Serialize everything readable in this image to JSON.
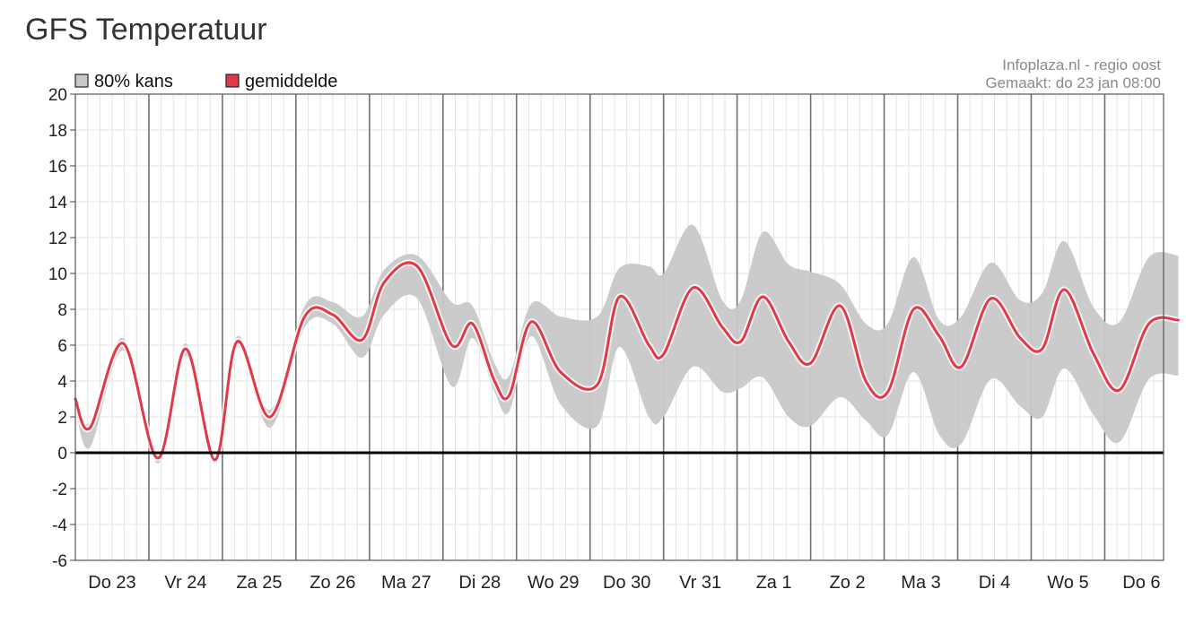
{
  "page": {
    "title": "GFS Temperatuur"
  },
  "chart_data": {
    "type": "line",
    "title": "GFS Temperatuur",
    "source": "Infoplaza.nl - regio oost",
    "created": "Gemaakt: do 23 jan 08:00",
    "ylim": [
      -6,
      20
    ],
    "yticks": [
      -6,
      -4,
      -2,
      0,
      2,
      4,
      6,
      8,
      10,
      12,
      14,
      16,
      18,
      20
    ],
    "grid": true,
    "legend_position": "top-left",
    "legend": [
      {
        "label": "80% kans",
        "color": "#c8c8c8"
      },
      {
        "label": "gemiddelde",
        "color": "#e03a4a"
      }
    ],
    "days": [
      "Do 23",
      "Vr 24",
      "Za 25",
      "Zo 26",
      "Ma 27",
      "Di 28",
      "Wo 29",
      "Do 30",
      "Vr 31",
      "Za 1",
      "Zo 2",
      "Ma 3",
      "Di 4",
      "Wo 5",
      "Do 6"
    ],
    "x_unit": "days from Do 23 00:00",
    "series": [
      {
        "name": "gemiddelde",
        "color": "#e03a4a",
        "x": [
          0,
          0.2,
          0.65,
          1.12,
          1.5,
          1.9,
          2.2,
          2.65,
          3.12,
          3.5,
          3.9,
          4.2,
          4.65,
          5.12,
          5.4,
          5.7,
          5.9,
          6.2,
          6.6,
          7.1,
          7.4,
          7.8,
          8.0,
          8.4,
          8.8,
          9.05,
          9.35,
          9.7,
          10.0,
          10.4,
          10.75,
          11.05,
          11.4,
          11.75,
          12.05,
          12.45,
          12.85,
          13.15,
          13.45,
          13.85,
          14.2,
          14.6,
          15.0
        ],
        "values": [
          3.0,
          1.4,
          6.1,
          -0.3,
          5.8,
          -0.4,
          6.2,
          2.0,
          7.6,
          7.7,
          6.3,
          9.5,
          10.4,
          6.0,
          7.2,
          4.0,
          3.2,
          7.3,
          4.5,
          3.8,
          8.7,
          6.0,
          5.5,
          9.2,
          7.0,
          6.2,
          8.7,
          6.2,
          5.0,
          8.2,
          4.0,
          3.4,
          8.0,
          6.5,
          4.8,
          8.6,
          6.4,
          5.8,
          9.1,
          5.5,
          3.5,
          7.2,
          7.4
        ]
      },
      {
        "name": "80% kans",
        "color": "#c8c8c8",
        "x": [
          0,
          0.2,
          0.65,
          1.12,
          1.5,
          1.9,
          2.2,
          2.65,
          3.12,
          3.5,
          3.9,
          4.2,
          4.65,
          5.12,
          5.4,
          5.7,
          5.9,
          6.2,
          6.6,
          7.1,
          7.4,
          7.8,
          8.0,
          8.4,
          8.8,
          9.05,
          9.35,
          9.7,
          10.0,
          10.4,
          10.75,
          11.05,
          11.4,
          11.75,
          12.05,
          12.45,
          12.85,
          13.15,
          13.45,
          13.85,
          14.2,
          14.6,
          15.0
        ],
        "upper": [
          3.2,
          1.7,
          6.4,
          -0.1,
          6.1,
          -0.2,
          6.5,
          2.4,
          8.2,
          8.4,
          7.6,
          10.2,
          11.0,
          8.4,
          8.2,
          5.0,
          4.3,
          8.3,
          7.6,
          7.6,
          10.3,
          10.4,
          10.0,
          12.7,
          8.5,
          8.5,
          12.3,
          10.5,
          10.1,
          9.4,
          7.2,
          7.2,
          10.9,
          7.4,
          7.6,
          10.6,
          8.5,
          8.9,
          11.8,
          8.1,
          7.3,
          10.9,
          11.0
        ],
        "lower": [
          2.5,
          0.3,
          5.7,
          -0.6,
          5.4,
          -0.6,
          5.9,
          1.4,
          7.0,
          7.2,
          5.3,
          7.7,
          8.6,
          3.7,
          6.4,
          3.4,
          2.3,
          6.5,
          2.7,
          1.5,
          5.9,
          2.0,
          2.0,
          4.8,
          3.4,
          3.6,
          4.2,
          2.0,
          1.5,
          3.1,
          1.8,
          1.0,
          4.5,
          1.0,
          0.5,
          4.1,
          2.6,
          2.0,
          4.7,
          2.1,
          0.6,
          4.1,
          4.3
        ]
      }
    ]
  }
}
